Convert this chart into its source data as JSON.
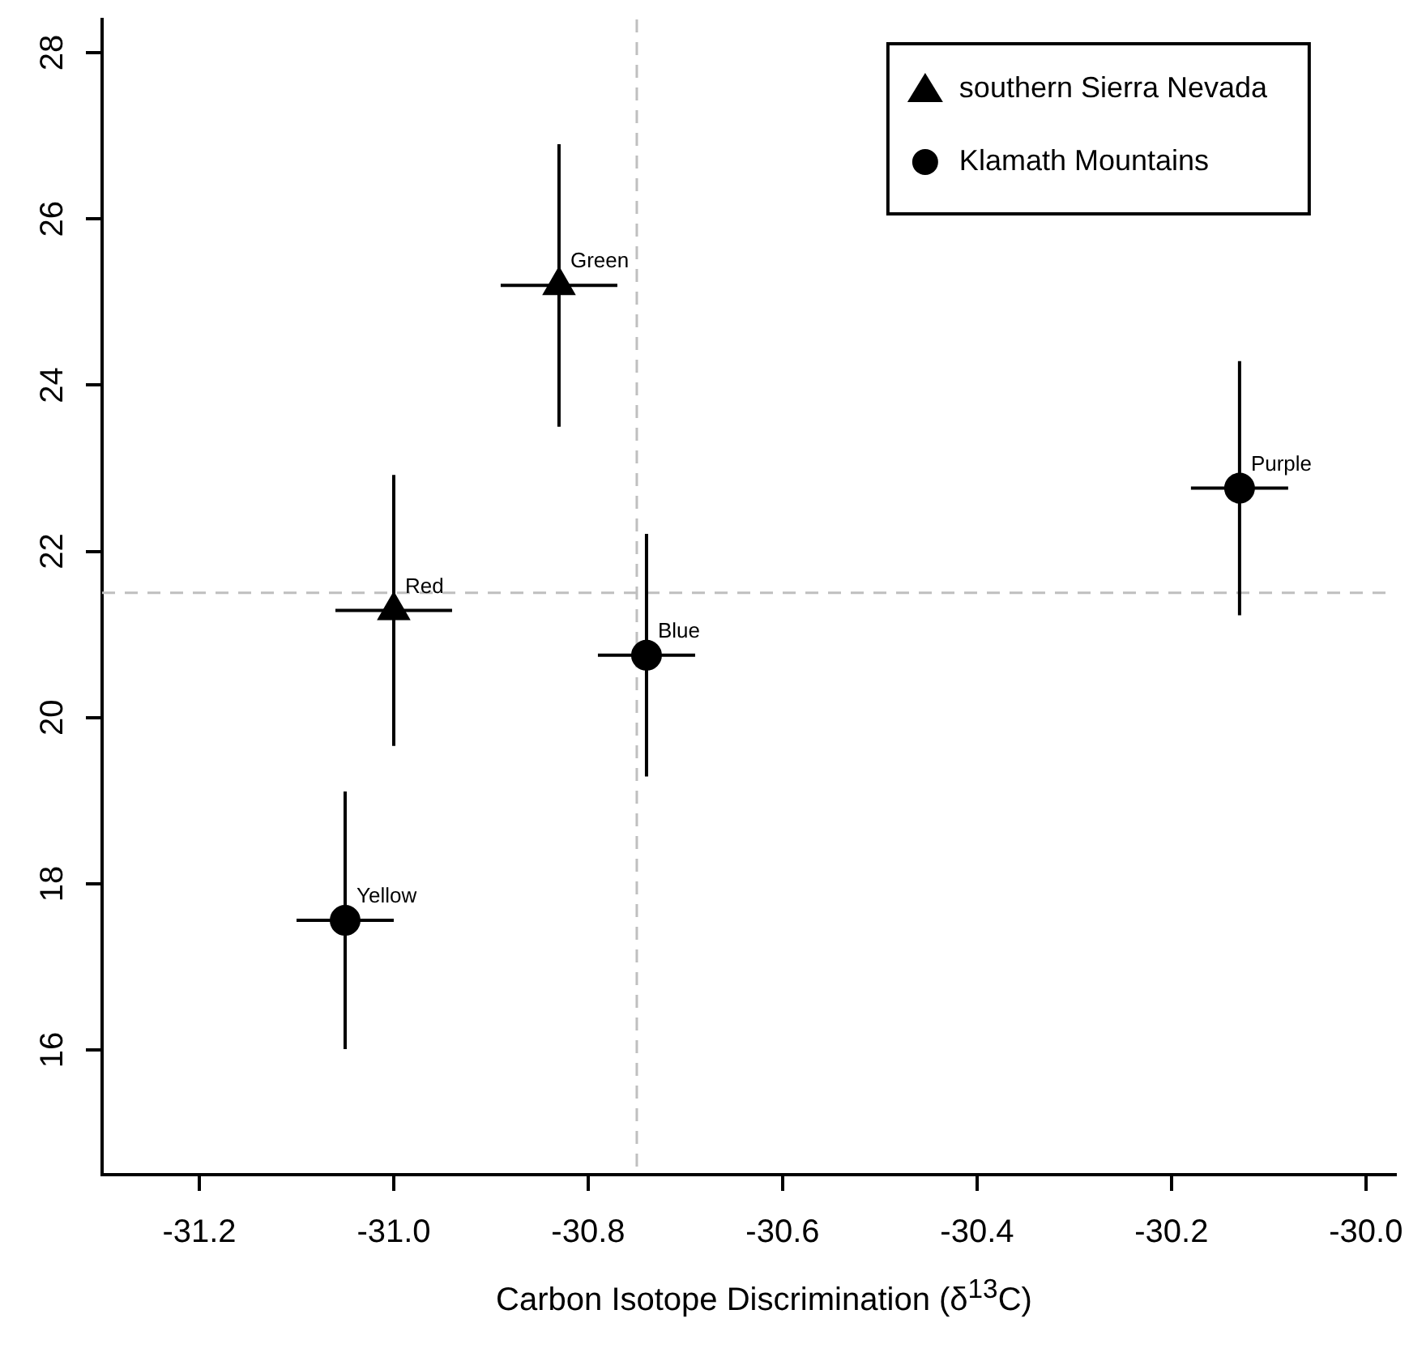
{
  "chart_data": {
    "type": "scatter",
    "xlabel": "Carbon Isotope Discrimination (δ$^{13}$C)",
    "xlim": [
      -31.3,
      -29.97
    ],
    "xticks": [
      -31.2,
      {
        "value": -31,
        "label": "-31.0"
      },
      -30.8,
      -30.6,
      -30.4,
      -30.2,
      {
        "value": -30,
        "label": "-30.0"
      }
    ],
    "ylim": [
      14.5,
      28.4
    ],
    "yticks": [
      16,
      18,
      20,
      22,
      24,
      26,
      28
    ],
    "grid": false,
    "legend": "top right",
    "series": [
      {
        "name": "southern Sierra Nevada",
        "color": "#000000",
        "marker": "triangle",
        "x": [
          -31.0,
          -30.83
        ],
        "values": [
          21.29,
          25.2
        ],
        "errors": [
          1.63,
          1.7
        ],
        "xerrors": [
          0.06,
          0.06
        ]
      },
      {
        "name": "Klamath Mountains",
        "color": "#000000",
        "marker": "circle",
        "x": [
          -31.05,
          -30.74,
          -30.13
        ],
        "values": [
          17.56,
          20.75,
          22.76
        ],
        "errors": [
          1.55,
          1.46,
          1.53
        ],
        "xerrors": [
          0.05,
          0.05,
          0.05
        ]
      }
    ],
    "annotations": [
      {
        "text": "Red",
        "x": -31.0,
        "y": 21.29
      },
      {
        "text": "Green",
        "x": -30.83,
        "y": 25.2
      },
      {
        "text": "Yellow",
        "x": -31.05,
        "y": 17.56
      },
      {
        "text": "Blue",
        "x": -30.74,
        "y": 20.75
      },
      {
        "text": "Purple",
        "x": -30.13,
        "y": 22.76
      }
    ],
    "ref_lines": [
      {
        "axis": "x",
        "value": -30.75,
        "color": "#bfbfbf",
        "line_style": "dashed"
      },
      {
        "axis": "y",
        "value": 21.5,
        "color": "#bfbfbf",
        "line_style": "dashed"
      }
    ]
  }
}
